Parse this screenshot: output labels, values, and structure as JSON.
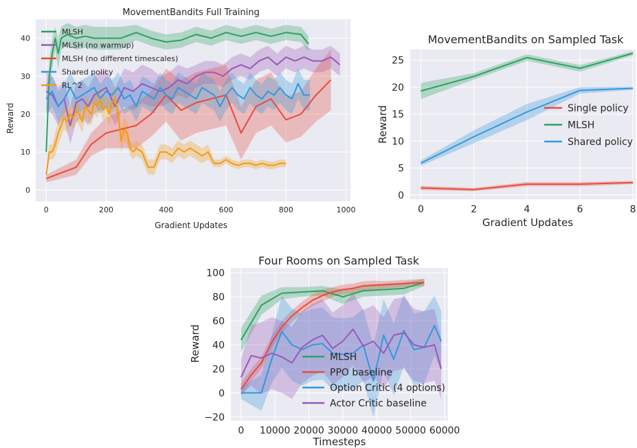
{
  "chart_data": [
    {
      "type": "line",
      "title": "MovementBandits Full Training",
      "xlabel": "Gradient Updates",
      "ylabel": "Reward",
      "xlim": [
        -35,
        1015
      ],
      "ylim": [
        -3,
        45
      ],
      "xticks": [
        0,
        200,
        400,
        600,
        800,
        1000
      ],
      "xtick_labels": [
        "0",
        "200",
        "400",
        "600",
        "800",
        "1000"
      ],
      "yticks": [
        0,
        10,
        20,
        30,
        40
      ],
      "ytick_labels": [
        "0",
        "10",
        "20",
        "30",
        "40"
      ],
      "grid": true,
      "legend_position": "top-left",
      "series": [
        {
          "name": "MLSH",
          "color": "#2ca25f",
          "x": [
            0,
            10,
            20,
            30,
            40,
            50,
            70,
            100,
            130,
            160,
            200,
            250,
            300,
            350,
            400,
            450,
            500,
            550,
            600,
            650,
            700,
            750,
            800,
            850,
            875
          ],
          "y": [
            10,
            30,
            36,
            40,
            36,
            40,
            41,
            40,
            40.5,
            40,
            40,
            40,
            41.5,
            40,
            39,
            39.5,
            41,
            40,
            41.5,
            40.5,
            41.5,
            40.5,
            41.5,
            41,
            38.5
          ],
          "band": [
            3,
            4,
            4,
            3,
            4,
            3,
            3,
            3,
            3,
            3,
            3,
            3,
            2,
            2,
            2,
            2,
            2,
            2,
            2,
            2,
            2,
            2,
            2,
            2,
            2
          ]
        },
        {
          "name": "MLSH (no warmup)",
          "color": "#9b59b6",
          "x": [
            0,
            20,
            40,
            60,
            80,
            100,
            120,
            140,
            160,
            180,
            200,
            230,
            260,
            290,
            320,
            350,
            380,
            410,
            440,
            470,
            500,
            530,
            560,
            590,
            620,
            650,
            680,
            710,
            740,
            770,
            800,
            830,
            860,
            890,
            920,
            950,
            980
          ],
          "y": [
            26,
            25,
            22,
            24,
            17,
            23,
            24,
            22,
            25,
            26,
            27,
            22,
            27,
            26,
            28,
            27,
            26,
            27,
            29,
            28,
            30,
            31,
            31,
            30,
            32,
            33,
            32,
            34,
            35,
            33,
            35,
            34,
            35,
            34,
            34,
            35,
            33
          ],
          "band": [
            5,
            5,
            5,
            5,
            5,
            5,
            5,
            5,
            5,
            5,
            5,
            5,
            5,
            5,
            5,
            5,
            4,
            4,
            4,
            4,
            3,
            3,
            3,
            3,
            3,
            3,
            3,
            3,
            3,
            3,
            3,
            3,
            3,
            3,
            3,
            3,
            3
          ]
        },
        {
          "name": "MLSH (no different timescales)",
          "color": "#e74c3c",
          "x": [
            0,
            100,
            150,
            200,
            250,
            300,
            350,
            400,
            450,
            500,
            550,
            600,
            650,
            700,
            750,
            800,
            850,
            900,
            950
          ],
          "y": [
            3,
            6,
            12,
            15,
            16,
            17,
            20,
            25,
            21,
            23,
            24,
            25,
            15,
            22,
            24,
            18.5,
            20,
            25,
            29
          ],
          "band": [
            1,
            2,
            3,
            4,
            5,
            6,
            6,
            7,
            8,
            8,
            8,
            8,
            7,
            7,
            7,
            6,
            6,
            7,
            8
          ]
        },
        {
          "name": "Shared policy",
          "color": "#3498db",
          "x": [
            0,
            20,
            40,
            60,
            80,
            100,
            120,
            140,
            160,
            180,
            200,
            220,
            240,
            260,
            280,
            300,
            320,
            340,
            360,
            380,
            400,
            420,
            440,
            460,
            480,
            500,
            520,
            540,
            560,
            580,
            600,
            620,
            640,
            660,
            680,
            700,
            720,
            740,
            760,
            780,
            800,
            820,
            840,
            860,
            880
          ],
          "y": [
            24,
            26,
            22,
            24,
            27,
            24,
            25,
            26,
            27,
            24,
            26,
            25,
            27,
            24,
            25,
            22,
            26,
            25,
            24,
            27,
            25,
            24,
            27,
            26,
            25,
            24,
            27,
            26,
            25,
            22,
            25,
            27,
            25,
            24,
            27,
            25,
            24,
            26,
            25,
            27,
            25,
            24,
            28,
            25,
            25
          ],
          "band": [
            4,
            4,
            4,
            4,
            4,
            4,
            4,
            4,
            4,
            4,
            4,
            4,
            4,
            4,
            4,
            4,
            4,
            4,
            4,
            4,
            4,
            4,
            4,
            4,
            4,
            4,
            4,
            4,
            4,
            4,
            4,
            4,
            4,
            4,
            4,
            4,
            4,
            4,
            4,
            4,
            4,
            4,
            4,
            4,
            4
          ]
        },
        {
          "name": "RL^2",
          "color": "#f39c12",
          "x": [
            0,
            10,
            20,
            30,
            40,
            50,
            60,
            70,
            80,
            90,
            100,
            110,
            120,
            130,
            140,
            150,
            160,
            170,
            180,
            190,
            200,
            210,
            220,
            230,
            240,
            250,
            260,
            270,
            280,
            290,
            300,
            320,
            340,
            360,
            380,
            400,
            420,
            440,
            460,
            480,
            500,
            520,
            540,
            560,
            580,
            600,
            620,
            640,
            660,
            680,
            700,
            720,
            740,
            760,
            780,
            800
          ],
          "y": [
            4,
            10,
            10,
            12,
            15,
            17,
            19,
            18,
            20,
            19,
            21,
            20,
            18,
            22,
            21,
            20,
            23,
            22,
            24,
            21,
            22,
            20,
            23,
            24,
            20,
            13,
            16,
            15,
            11,
            10,
            11,
            10,
            6,
            6,
            10,
            10,
            9,
            11,
            10,
            11,
            10,
            9,
            10,
            7,
            7,
            8,
            7,
            6.5,
            7,
            7,
            6.5,
            7,
            6.5,
            6.5,
            7,
            7
          ],
          "band": [
            1,
            2,
            2,
            3,
            3,
            3,
            3,
            3,
            3,
            3,
            3,
            3,
            3,
            3,
            3,
            3,
            3,
            3,
            3,
            3,
            3,
            3,
            3,
            3,
            3,
            3,
            3,
            3,
            2,
            2,
            2,
            2,
            2,
            2,
            2,
            2,
            2,
            2,
            2,
            2,
            2,
            2,
            2,
            1,
            1,
            1,
            1,
            1,
            1,
            1,
            1,
            1,
            1,
            1,
            1,
            1
          ]
        }
      ]
    },
    {
      "type": "line",
      "title": "MovementBandits on Sampled Task",
      "xlabel": "Gradient Updates",
      "ylabel": "Reward",
      "xlim": [
        -0.4,
        8.1
      ],
      "ylim": [
        -0.8,
        27
      ],
      "xticks": [
        0,
        2,
        4,
        6,
        8
      ],
      "xtick_labels": [
        "0",
        "2",
        "4",
        "6",
        "8"
      ],
      "yticks": [
        0,
        5,
        10,
        15,
        20,
        25
      ],
      "ytick_labels": [
        "0",
        "5",
        "10",
        "15",
        "20",
        "25"
      ],
      "grid": true,
      "legend_position": "right",
      "series": [
        {
          "name": "Single policy",
          "color": "#e74c3c",
          "x": [
            0,
            2,
            4,
            6,
            8
          ],
          "y": [
            1.3,
            1.0,
            2.0,
            2.0,
            2.3
          ],
          "band": [
            0.4,
            0.3,
            0.4,
            0.4,
            0.3
          ]
        },
        {
          "name": "MLSH",
          "color": "#2ca25f",
          "x": [
            0,
            2,
            4,
            6,
            8
          ],
          "y": [
            19.3,
            22.0,
            25.5,
            23.5,
            26.3
          ],
          "band": [
            1.5,
            0.6,
            0.6,
            0.6,
            0.4
          ]
        },
        {
          "name": "Shared policy",
          "color": "#3498db",
          "x": [
            0,
            2,
            4,
            6,
            8
          ],
          "y": [
            5.9,
            10.8,
            15.4,
            19.4,
            19.8
          ],
          "band": [
            0.5,
            1.2,
            1.5,
            0.6,
            0.3
          ]
        }
      ]
    },
    {
      "type": "line",
      "title": "Four Rooms on Sampled Task",
      "xlabel": "Timesteps",
      "ylabel": "Reward",
      "xlim": [
        -3000,
        61000
      ],
      "ylim": [
        -23,
        104
      ],
      "xticks": [
        0,
        10000,
        20000,
        30000,
        40000,
        50000,
        60000
      ],
      "xtick_labels": [
        "0",
        "10000",
        "20000",
        "30000",
        "40000",
        "50000",
        "60000"
      ],
      "yticks": [
        -20,
        0,
        20,
        40,
        60,
        80,
        100
      ],
      "ytick_labels": [
        "−20",
        "0",
        "20",
        "40",
        "60",
        "80",
        "100"
      ],
      "grid": true,
      "legend_position": "lower-center",
      "series": [
        {
          "name": "MLSH",
          "color": "#2ca25f",
          "x": [
            0,
            6000,
            12000,
            18000,
            24000,
            30000,
            36000,
            42000,
            48000,
            54000
          ],
          "y": [
            44,
            73,
            83,
            84,
            85,
            80,
            85,
            86,
            87,
            92
          ],
          "band": [
            10,
            8,
            5,
            4,
            4,
            6,
            5,
            5,
            5,
            3
          ]
        },
        {
          "name": "PPO baseline",
          "color": "#e74c3c",
          "x": [
            0,
            3000,
            6000,
            9000,
            12000,
            15000,
            18000,
            21000,
            24000,
            27000,
            30000,
            33000,
            36000,
            39000,
            42000,
            45000,
            48000,
            51000,
            54000
          ],
          "y": [
            3,
            15,
            25,
            42,
            55,
            64,
            71,
            77,
            81,
            84,
            86,
            87,
            89,
            89.5,
            90,
            90.5,
            91,
            91.5,
            92
          ],
          "band": [
            5,
            5,
            5,
            5,
            5,
            5,
            5,
            5,
            5,
            4,
            4,
            4,
            4,
            4,
            3,
            3,
            3,
            3,
            3
          ]
        },
        {
          "name": "Option Critic (4 options)",
          "color": "#3498db",
          "x": [
            0,
            3000,
            6000,
            9000,
            12000,
            15000,
            18000,
            21000,
            24000,
            27000,
            30000,
            33000,
            36000,
            39000,
            42000,
            45000,
            48000,
            51000,
            54000,
            57000,
            59000
          ],
          "y": [
            0,
            0,
            0,
            28,
            51,
            40,
            36,
            40,
            41,
            33,
            32,
            33,
            40,
            10,
            48,
            28,
            52,
            36,
            38,
            56,
            43
          ],
          "band": [
            5,
            10,
            15,
            20,
            30,
            30,
            30,
            30,
            30,
            30,
            30,
            30,
            30,
            30,
            30,
            30,
            30,
            30,
            30,
            25,
            25
          ]
        },
        {
          "name": "Actor Critic baseline",
          "color": "#9b59b6",
          "x": [
            0,
            3000,
            6000,
            9000,
            12000,
            15000,
            18000,
            21000,
            24000,
            27000,
            30000,
            33000,
            36000,
            39000,
            42000,
            45000,
            48000,
            51000,
            54000,
            57000,
            59000
          ],
          "y": [
            13,
            31,
            29,
            33,
            30,
            25,
            38,
            44,
            48,
            37,
            43,
            53,
            39,
            43,
            33,
            48,
            50,
            40,
            38,
            40,
            20
          ],
          "band": [
            15,
            25,
            30,
            30,
            30,
            30,
            30,
            30,
            30,
            30,
            30,
            30,
            30,
            30,
            30,
            30,
            30,
            30,
            30,
            30,
            25
          ]
        }
      ]
    }
  ]
}
